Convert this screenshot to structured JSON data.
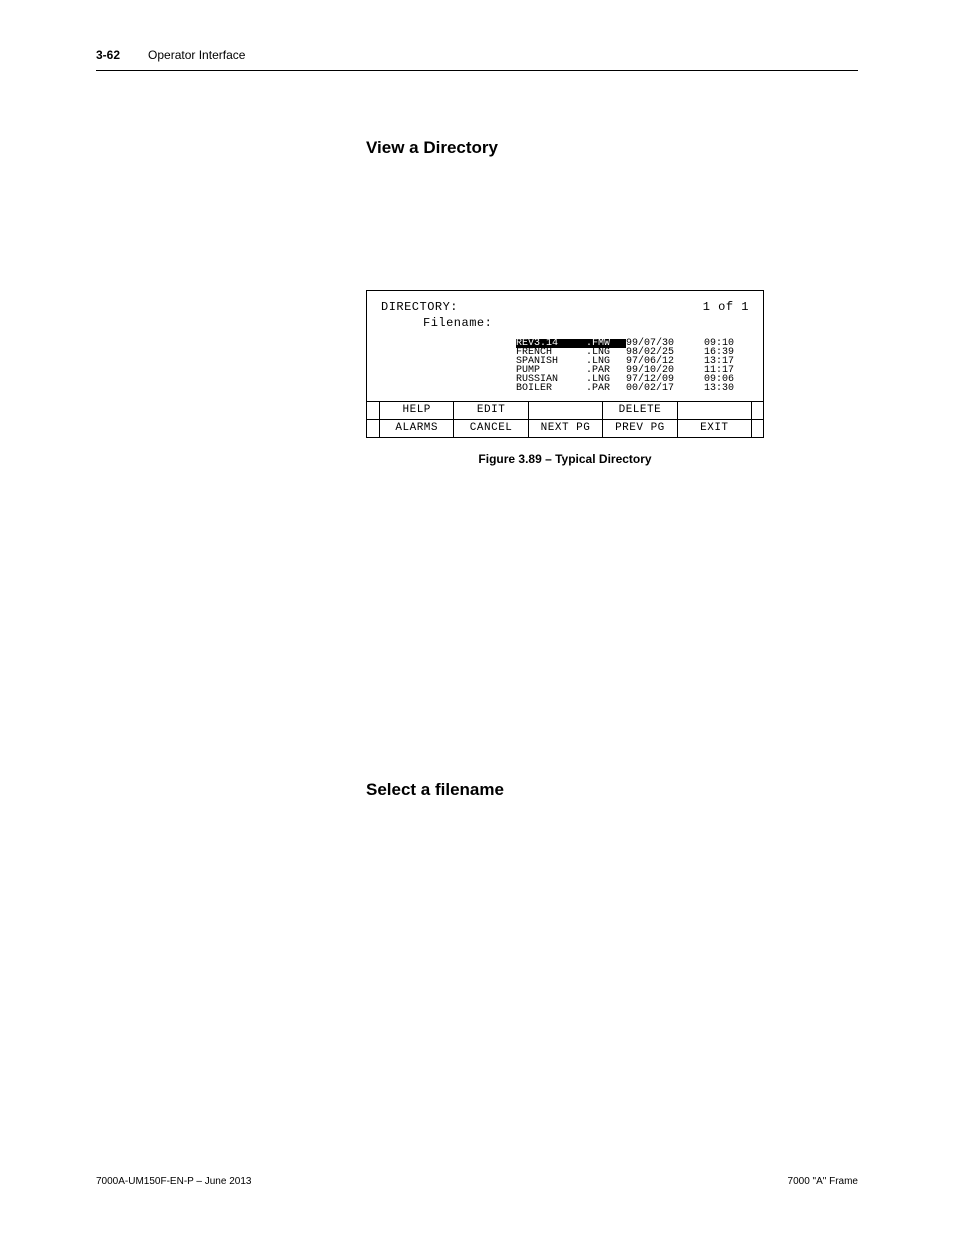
{
  "header": {
    "page_num": "3-62",
    "section": "Operator Interface"
  },
  "headings": {
    "view_dir": "View a Directory",
    "select_filename": "Select a filename"
  },
  "lcd": {
    "title": "DIRECTORY:",
    "page_indicator": "1 of  1",
    "filename_label": "Filename:",
    "files": [
      {
        "name": "REV3.14",
        "ext": ".FMW",
        "date": "99/07/30",
        "time": "09:10",
        "selected": true
      },
      {
        "name": "FRENCH",
        "ext": ".LNG",
        "date": "98/02/25",
        "time": "16:39",
        "selected": false
      },
      {
        "name": "SPANISH",
        "ext": ".LNG",
        "date": "97/06/12",
        "time": "13:17",
        "selected": false
      },
      {
        "name": "PUMP",
        "ext": ".PAR",
        "date": "99/10/20",
        "time": "11:17",
        "selected": false
      },
      {
        "name": "RUSSIAN",
        "ext": ".LNG",
        "date": "97/12/09",
        "time": "09:06",
        "selected": false
      },
      {
        "name": "BOILER",
        "ext": ".PAR",
        "date": "00/02/17",
        "time": "13:30",
        "selected": false
      }
    ],
    "row1": {
      "c1": "HELP",
      "c2": "EDIT",
      "c3": "",
      "c4": "DELETE",
      "c5": ""
    },
    "row2": {
      "c1": "ALARMS",
      "c2": "CANCEL",
      "c3": "NEXT PG",
      "c4": "PREV PG",
      "c5": "EXIT"
    }
  },
  "caption": "Figure 3.89 – Typical Directory",
  "footer": {
    "left": "7000A-UM150F-EN-P – June 2013",
    "right": "7000 \"A\" Frame"
  },
  "colors": {
    "text": "#000000",
    "bg": "#ffffff"
  }
}
